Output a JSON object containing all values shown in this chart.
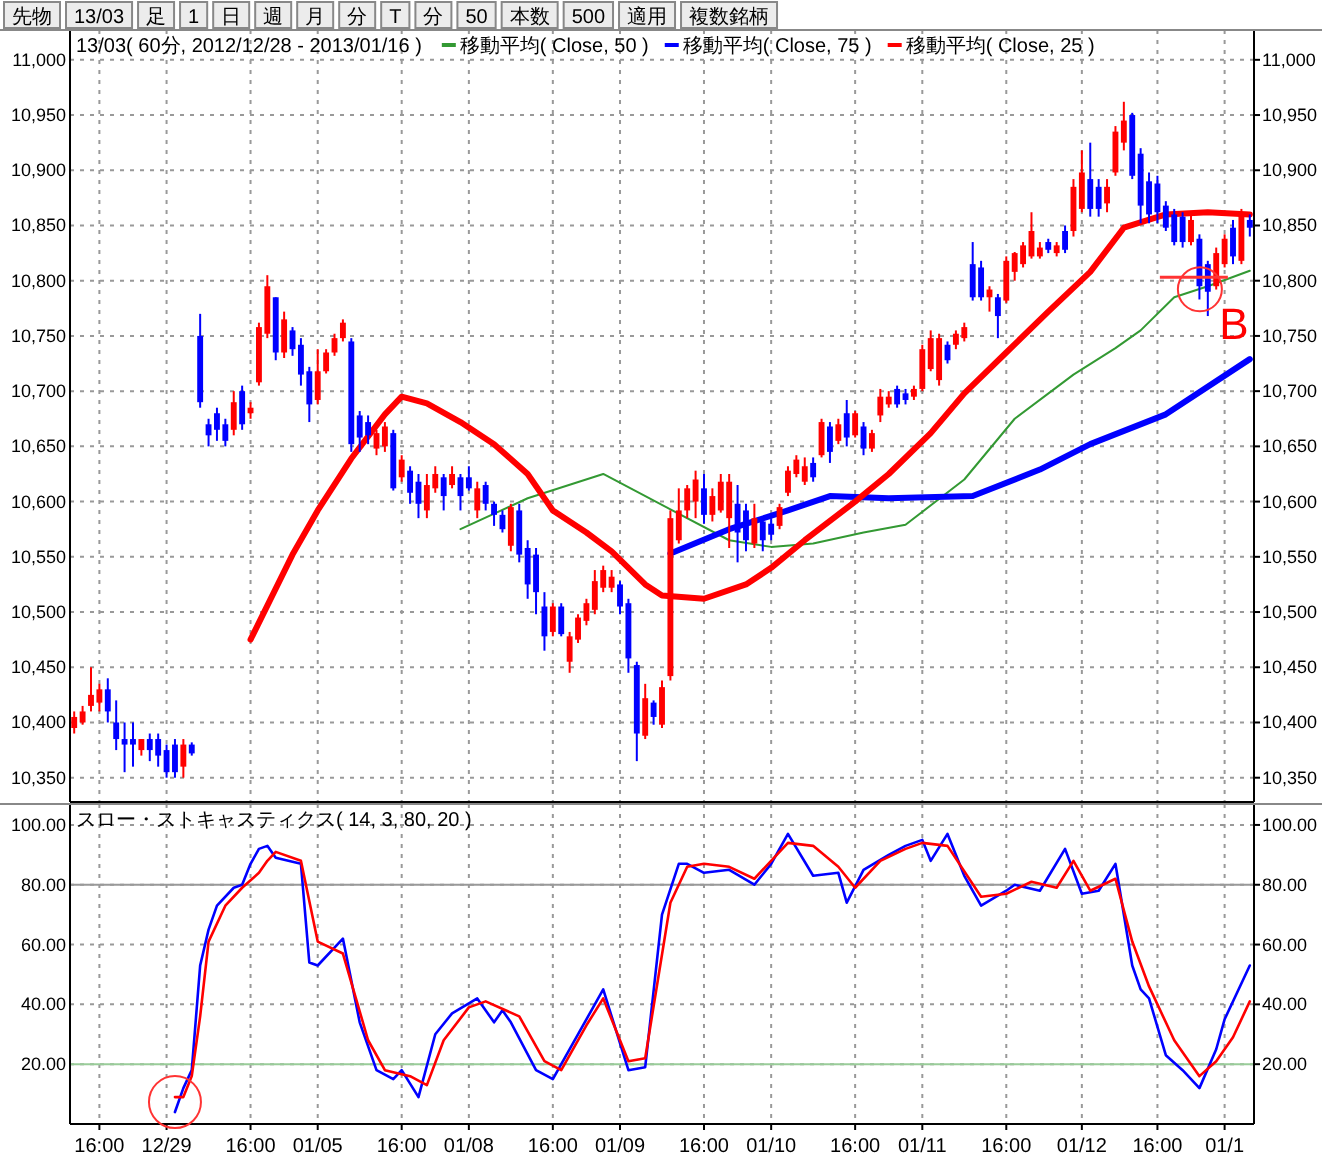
{
  "chart_data": [
    {
      "type": "candlestick",
      "title": "13/03( 60分, 2012/12/28 - 2013/01/16 )",
      "categories": [
        null,
        null,
        null,
        null,
        null,
        null,
        null,
        null,
        null,
        null,
        null,
        null,
        null,
        null,
        null,
        null,
        null,
        null,
        null,
        null,
        null,
        null,
        null,
        null,
        null,
        null,
        null,
        null,
        null,
        null,
        null,
        null,
        null,
        null,
        null,
        null,
        null,
        null,
        null,
        null,
        null,
        null,
        null,
        null,
        null,
        null,
        null,
        null,
        null,
        null,
        null,
        null,
        null,
        null,
        null,
        null,
        null,
        null,
        null,
        null,
        null,
        null,
        null,
        null,
        null,
        null,
        null,
        null,
        null,
        null,
        null,
        null,
        null,
        null,
        null,
        null,
        null,
        null,
        null,
        null,
        null,
        null,
        null,
        null,
        null,
        null,
        null,
        null,
        null,
        null,
        null,
        null,
        null,
        null,
        null,
        null,
        null,
        null,
        null,
        null,
        null,
        null,
        null,
        null,
        null,
        null,
        null,
        null,
        null,
        null,
        null,
        null,
        null,
        null,
        null,
        null,
        null,
        null,
        null,
        null,
        null,
        null,
        null,
        null,
        null,
        null,
        null,
        null,
        null,
        null,
        null,
        null,
        null,
        null,
        null,
        null,
        null,
        null,
        null,
        null,
        null
      ],
      "ohlc": [
        [
          10395,
          10410,
          10390,
          10405
        ],
        [
          10400,
          10415,
          10398,
          10410
        ],
        [
          10415,
          10450,
          10410,
          10425
        ],
        [
          10418,
          10435,
          10410,
          10430
        ],
        [
          10430,
          10440,
          10400,
          10410
        ],
        [
          10400,
          10420,
          10375,
          10385
        ],
        [
          10385,
          10400,
          10355,
          10380
        ],
        [
          10385,
          10400,
          10360,
          10380
        ],
        [
          10375,
          10385,
          10370,
          10385
        ],
        [
          10385,
          10390,
          10365,
          10375
        ],
        [
          10385,
          10390,
          10360,
          10370
        ],
        [
          10375,
          10380,
          10350,
          10355
        ],
        [
          10380,
          10385,
          10350,
          10355
        ],
        [
          10360,
          10385,
          10350,
          10380
        ],
        [
          10380,
          10382,
          10370,
          10372
        ],
        [
          10750,
          10770,
          10685,
          10690
        ],
        [
          10670,
          10675,
          10650,
          10660
        ],
        [
          10680,
          10685,
          10655,
          10665
        ],
        [
          10670,
          10675,
          10650,
          10655
        ],
        [
          10665,
          10700,
          10660,
          10690
        ],
        [
          10700,
          10705,
          10665,
          10670
        ],
        [
          10680,
          10690,
          10675,
          10685
        ],
        [
          10708,
          10762,
          10705,
          10758
        ],
        [
          10752,
          10805,
          10748,
          10795
        ],
        [
          10785,
          10785,
          10728,
          10735
        ],
        [
          10735,
          10772,
          10730,
          10765
        ],
        [
          10755,
          10758,
          10732,
          10738
        ],
        [
          10742,
          10748,
          10705,
          10715
        ],
        [
          10718,
          10722,
          10672,
          10688
        ],
        [
          10692,
          10738,
          10688,
          10718
        ],
        [
          10718,
          10738,
          10716,
          10735
        ],
        [
          10735,
          10752,
          10732,
          10748
        ],
        [
          10748,
          10765,
          10745,
          10762
        ],
        [
          10745,
          10748,
          10645,
          10652
        ],
        [
          10678,
          10682,
          10645,
          10658
        ],
        [
          10672,
          10678,
          10652,
          10660
        ],
        [
          10648,
          10665,
          10642,
          10662
        ],
        [
          10650,
          10672,
          10645,
          10668
        ],
        [
          10662,
          10665,
          10610,
          10612
        ],
        [
          10622,
          10642,
          10618,
          10638
        ],
        [
          10628,
          10632,
          10598,
          10608
        ],
        [
          10618,
          10625,
          10585,
          10598
        ],
        [
          10592,
          10625,
          10585,
          10615
        ],
        [
          10612,
          10632,
          10608,
          10625
        ],
        [
          10622,
          10625,
          10592,
          10605
        ],
        [
          10615,
          10632,
          10612,
          10625
        ],
        [
          10622,
          10625,
          10592,
          10605
        ],
        [
          10622,
          10632,
          10610,
          10612
        ],
        [
          10592,
          10618,
          10585,
          10612
        ],
        [
          10615,
          10618,
          10592,
          10598
        ],
        [
          10598,
          10600,
          10578,
          10588
        ],
        [
          10588,
          10592,
          10572,
          10575
        ],
        [
          10560,
          10598,
          10555,
          10595
        ],
        [
          10592,
          10598,
          10545,
          10552
        ],
        [
          10558,
          10565,
          10512,
          10525
        ],
        [
          10552,
          10558,
          10498,
          10518
        ],
        [
          10505,
          10518,
          10465,
          10478
        ],
        [
          10482,
          10508,
          10478,
          10505
        ],
        [
          10505,
          10508,
          10478,
          10480
        ],
        [
          10455,
          10482,
          10445,
          10478
        ],
        [
          10475,
          10498,
          10472,
          10495
        ],
        [
          10492,
          10512,
          10488,
          10508
        ],
        [
          10502,
          10538,
          10498,
          10528
        ],
        [
          10522,
          10542,
          10518,
          10538
        ],
        [
          10522,
          10538,
          10518,
          10532
        ],
        [
          10525,
          10528,
          10498,
          10505
        ],
        [
          10508,
          10512,
          10445,
          10458
        ],
        [
          10452,
          10455,
          10365,
          10390
        ],
        [
          10388,
          10435,
          10385,
          10422
        ],
        [
          10418,
          10420,
          10398,
          10405
        ],
        [
          10398,
          10438,
          10395,
          10432
        ],
        [
          10442,
          10592,
          10438,
          10585
        ],
        [
          10565,
          10612,
          10562,
          10592
        ],
        [
          10592,
          10615,
          10585,
          10612
        ],
        [
          10600,
          10628,
          10585,
          10620
        ],
        [
          10612,
          10625,
          10580,
          10588
        ],
        [
          10588,
          10612,
          10582,
          10605
        ],
        [
          10592,
          10625,
          10590,
          10618
        ],
        [
          10585,
          10625,
          10558,
          10618
        ],
        [
          10598,
          10615,
          10545,
          10572
        ],
        [
          10592,
          10598,
          10555,
          10565
        ],
        [
          10562,
          10598,
          10558,
          10585
        ],
        [
          10582,
          10585,
          10555,
          10565
        ],
        [
          10580,
          10585,
          10565,
          10570
        ],
        [
          10578,
          10598,
          10575,
          10595
        ],
        [
          10608,
          10632,
          10605,
          10628
        ],
        [
          10625,
          10642,
          10622,
          10638
        ],
        [
          10618,
          10640,
          10615,
          10632
        ],
        [
          10635,
          10640,
          10618,
          10622
        ],
        [
          10642,
          10675,
          10640,
          10672
        ],
        [
          10668,
          10672,
          10635,
          10645
        ],
        [
          10655,
          10675,
          10652,
          10670
        ],
        [
          10680,
          10692,
          10650,
          10658
        ],
        [
          10660,
          10682,
          10658,
          10680
        ],
        [
          10668,
          10672,
          10642,
          10648
        ],
        [
          10648,
          10665,
          10645,
          10662
        ],
        [
          10678,
          10702,
          10672,
          10695
        ],
        [
          10688,
          10700,
          10685,
          10695
        ],
        [
          10702,
          10705,
          10685,
          10688
        ],
        [
          10698,
          10702,
          10688,
          10692
        ],
        [
          10695,
          10705,
          10692,
          10702
        ],
        [
          10702,
          10742,
          10700,
          10738
        ],
        [
          10720,
          10755,
          10718,
          10748
        ],
        [
          10710,
          10752,
          10705,
          10748
        ],
        [
          10742,
          10745,
          10725,
          10728
        ],
        [
          10742,
          10755,
          10738,
          10752
        ],
        [
          10748,
          10762,
          10745,
          10758
        ],
        [
          10815,
          10835,
          10782,
          10785
        ],
        [
          10812,
          10818,
          10782,
          10785
        ],
        [
          10785,
          10795,
          10772,
          10792
        ],
        [
          10785,
          10788,
          10748,
          10768
        ],
        [
          10782,
          10822,
          10780,
          10818
        ],
        [
          10808,
          10826,
          10800,
          10825
        ],
        [
          10815,
          10835,
          10812,
          10832
        ],
        [
          10822,
          10862,
          10820,
          10845
        ],
        [
          10822,
          10835,
          10820,
          10830
        ],
        [
          10835,
          10838,
          10825,
          10828
        ],
        [
          10825,
          10835,
          10822,
          10832
        ],
        [
          10845,
          10850,
          10825,
          10828
        ],
        [
          10845,
          10892,
          10840,
          10885
        ],
        [
          10865,
          10918,
          10862,
          10898
        ],
        [
          10892,
          10925,
          10858,
          10865
        ],
        [
          10885,
          10892,
          10858,
          10865
        ],
        [
          10870,
          10892,
          10862,
          10885
        ],
        [
          10898,
          10940,
          10895,
          10935
        ],
        [
          10925,
          10962,
          10918,
          10945
        ],
        [
          10950,
          10952,
          10892,
          10895
        ],
        [
          10915,
          10920,
          10852,
          10868
        ],
        [
          10890,
          10898,
          10852,
          10860
        ],
        [
          10888,
          10895,
          10852,
          10862
        ],
        [
          10868,
          10872,
          10845,
          10848
        ],
        [
          10860,
          10865,
          10832,
          10835
        ],
        [
          10858,
          10862,
          10830,
          10835
        ],
        [
          10835,
          10860,
          10832,
          10855
        ],
        [
          10838,
          10842,
          10783,
          10795
        ],
        [
          10815,
          10818,
          10768,
          10790
        ],
        [
          10795,
          10830,
          10792,
          10825
        ],
        [
          10815,
          10842,
          10812,
          10838
        ],
        [
          10848,
          10855,
          10815,
          10822
        ],
        [
          10818,
          10865,
          10815,
          10862
        ],
        [
          10855,
          10860,
          10840,
          10848
        ]
      ],
      "colors": [
        "#ff0000",
        "#ff0000",
        "#ff0000",
        "#ff0000",
        "#0000ff",
        "#0000ff",
        "#0000ff",
        "#0000ff",
        "#ff0000",
        "#0000ff",
        "#0000ff",
        "#0000ff",
        "#0000ff",
        "#ff0000",
        "#0000ff",
        "#0000ff",
        "#0000ff",
        "#0000ff",
        "#0000ff",
        "#ff0000",
        "#0000ff",
        "#ff0000",
        "#ff0000",
        "#ff0000",
        "#0000ff",
        "#ff0000",
        "#0000ff",
        "#0000ff",
        "#0000ff",
        "#ff0000",
        "#ff0000",
        "#ff0000",
        "#ff0000",
        "#0000ff",
        "#0000ff",
        "#0000ff",
        "#ff0000",
        "#ff0000",
        "#0000ff",
        "#ff0000",
        "#0000ff",
        "#0000ff",
        "#ff0000",
        "#ff0000",
        "#0000ff",
        "#ff0000",
        "#0000ff",
        "#0000ff",
        "#ff0000",
        "#0000ff",
        "#0000ff",
        "#0000ff",
        "#ff0000",
        "#0000ff",
        "#0000ff",
        "#0000ff",
        "#0000ff",
        "#ff0000",
        "#0000ff",
        "#ff0000",
        "#ff0000",
        "#ff0000",
        "#ff0000",
        "#ff0000",
        "#ff0000",
        "#0000ff",
        "#0000ff",
        "#0000ff",
        "#ff0000",
        "#0000ff",
        "#ff0000",
        "#ff0000",
        "#ff0000",
        "#ff0000",
        "#ff0000",
        "#0000ff",
        "#ff0000",
        "#ff0000",
        "#ff0000",
        "#0000ff",
        "#0000ff",
        "#ff0000",
        "#0000ff",
        "#0000ff",
        "#ff0000",
        "#ff0000",
        "#ff0000",
        "#ff0000",
        "#0000ff",
        "#ff0000",
        "#0000ff",
        "#ff0000",
        "#0000ff",
        "#ff0000",
        "#0000ff",
        "#ff0000",
        "#ff0000",
        "#ff0000",
        "#0000ff",
        "#0000ff",
        "#ff0000",
        "#ff0000",
        "#ff0000",
        "#ff0000",
        "#0000ff",
        "#ff0000",
        "#ff0000",
        "#0000ff",
        "#0000ff",
        "#ff0000",
        "#0000ff",
        "#ff0000",
        "#ff0000",
        "#ff0000",
        "#ff0000",
        "#ff0000",
        "#0000ff",
        "#ff0000",
        "#0000ff",
        "#ff0000",
        "#ff0000",
        "#0000ff",
        "#0000ff",
        "#ff0000",
        "#ff0000",
        "#ff0000",
        "#0000ff",
        "#0000ff",
        "#0000ff",
        "#0000ff",
        "#0000ff",
        "#0000ff",
        "#0000ff",
        "#ff0000",
        "#0000ff",
        "#0000ff",
        "#ff0000",
        "#ff0000",
        "#0000ff",
        "#ff0000",
        "#0000ff"
      ],
      "series": [
        {
          "type": "line",
          "name": "移動平均( Close, 50 )",
          "color": "#339933",
          "values": [
            null,
            null,
            null,
            null,
            null,
            null,
            null,
            null,
            null,
            null,
            null,
            null,
            null,
            null,
            null,
            null,
            null,
            null,
            null,
            null,
            null,
            null,
            null,
            null,
            null,
            null,
            null,
            null,
            null,
            null,
            null,
            null,
            null,
            null,
            null,
            null,
            null,
            null,
            null,
            null,
            null,
            null,
            null,
            null,
            null,
            null,
            10575,
            null,
            null,
            null,
            null,
            null,
            null,
            null,
            10603,
            null,
            null,
            null,
            null,
            null,
            null,
            null,
            null,
            10625,
            null,
            null,
            null,
            null,
            null,
            null,
            null,
            10593,
            null,
            null,
            null,
            null,
            null,
            null,
            10565,
            null,
            null,
            null,
            null,
            10559,
            null,
            null,
            null,
            null,
            10562,
            null,
            null,
            null,
            null,
            null,
            10572,
            null,
            null,
            null,
            null,
            10579,
            null,
            null,
            null,
            null,
            null,
            null,
            10620,
            null,
            null,
            null,
            null,
            null,
            10675,
            null,
            null,
            null,
            null,
            null,
            null,
            10715,
            null,
            null,
            null,
            null,
            10739,
            null,
            null,
            10755,
            null,
            null,
            null,
            10785,
            null,
            null,
            null,
            10795,
            null,
            null,
            null,
            null,
            10809
          ]
        },
        {
          "type": "line",
          "name": "移動平均( Close, 75 )",
          "color": "#0000ff",
          "values": [
            null,
            null,
            null,
            null,
            null,
            null,
            null,
            null,
            null,
            null,
            null,
            null,
            null,
            null,
            null,
            null,
            null,
            null,
            null,
            null,
            null,
            null,
            null,
            null,
            null,
            null,
            null,
            null,
            null,
            null,
            null,
            null,
            null,
            null,
            null,
            null,
            null,
            null,
            null,
            null,
            null,
            null,
            null,
            null,
            null,
            null,
            null,
            null,
            null,
            null,
            null,
            null,
            null,
            null,
            null,
            null,
            null,
            null,
            null,
            null,
            null,
            null,
            null,
            null,
            null,
            null,
            null,
            null,
            null,
            null,
            null,
            10553,
            null,
            null,
            null,
            null,
            null,
            null,
            10575,
            null,
            null,
            null,
            null,
            null,
            null,
            10592,
            null,
            null,
            null,
            null,
            10605,
            null,
            null,
            null,
            null,
            null,
            null,
            10603,
            null,
            null,
            null,
            null,
            null,
            null,
            null,
            null,
            null,
            10605,
            null,
            null,
            null,
            null,
            null,
            null,
            null,
            10629,
            null,
            null,
            null,
            null,
            null,
            10652,
            null,
            null,
            null,
            null,
            null,
            null,
            null,
            null,
            10679,
            null,
            null,
            null,
            null,
            null,
            null,
            null,
            null,
            null,
            10729
          ]
        },
        {
          "type": "line",
          "name": "移動平均( Close, 25 )",
          "color": "#ff0000",
          "values": [
            null,
            null,
            null,
            null,
            null,
            null,
            null,
            null,
            null,
            null,
            null,
            null,
            null,
            null,
            null,
            null,
            null,
            null,
            null,
            null,
            null,
            10475,
            null,
            null,
            null,
            null,
            10552,
            null,
            null,
            10592,
            null,
            null,
            null,
            10639,
            null,
            null,
            null,
            10679,
            null,
            10695,
            null,
            null,
            10689,
            null,
            null,
            null,
            10672,
            null,
            null,
            null,
            10652,
            null,
            null,
            null,
            10625,
            null,
            null,
            10592,
            null,
            null,
            null,
            10572,
            null,
            null,
            10555,
            null,
            null,
            null,
            10525,
            null,
            10515,
            null,
            null,
            null,
            null,
            10512,
            null,
            null,
            null,
            null,
            10525,
            null,
            null,
            10540,
            null,
            null,
            null,
            10565,
            null,
            null,
            null,
            null,
            null,
            10600,
            null,
            null,
            null,
            10625,
            null,
            null,
            null,
            null,
            10662,
            null,
            null,
            null,
            10698,
            null,
            null,
            null,
            null,
            10735,
            null,
            null,
            null,
            null,
            10772,
            null,
            null,
            null,
            null,
            10808,
            null,
            null,
            null,
            10848,
            null,
            null,
            null,
            null,
            10860,
            null,
            null,
            null,
            null,
            10862,
            null,
            null,
            null,
            null,
            10860
          ]
        }
      ],
      "ylim": [
        10328,
        11027
      ],
      "yticks": [
        {
          "value": 10350,
          "label": "10,350"
        },
        {
          "value": 10400,
          "label": "10,400"
        },
        {
          "value": 10450,
          "label": "10,450"
        },
        {
          "value": 10500,
          "label": "10,500"
        },
        {
          "value": 10550,
          "label": "10,550"
        },
        {
          "value": 10600,
          "label": "10,600"
        },
        {
          "value": 10650,
          "label": "10,650"
        },
        {
          "value": 10700,
          "label": "10,700"
        },
        {
          "value": 10750,
          "label": "10,750"
        },
        {
          "value": 10800,
          "label": "10,800"
        },
        {
          "value": 10850,
          "label": "10,850"
        },
        {
          "value": 10900,
          "label": "10,900"
        },
        {
          "value": 10950,
          "label": "10,950"
        },
        {
          "value": 11000,
          "label": "11,000"
        }
      ],
      "y2lim": [
        10328,
        11027
      ],
      "y2ticks": [
        {
          "value": 10350,
          "label": "10,350"
        },
        {
          "value": 10400,
          "label": "10,400"
        },
        {
          "value": 10450,
          "label": "10,450"
        },
        {
          "value": 10500,
          "label": "10,500"
        },
        {
          "value": 10550,
          "label": "10,550"
        },
        {
          "value": 10600,
          "label": "10,600"
        },
        {
          "value": 10650,
          "label": "10,650"
        },
        {
          "value": 10700,
          "label": "10,700"
        },
        {
          "value": 10750,
          "label": "10,750"
        },
        {
          "value": 10800,
          "label": "10,800"
        },
        {
          "value": 10850,
          "label": "10,850"
        },
        {
          "value": 10900,
          "label": "10,900"
        },
        {
          "value": 10950,
          "label": "10,950"
        },
        {
          "value": 11000,
          "label": "11,000"
        }
      ],
      "tick_labels": "y",
      "grid": true,
      "legend": "top",
      "annotations": [
        "B",
        "先物",
        "13/03",
        "足",
        "1",
        "日",
        "週",
        "月",
        "分",
        "T",
        "分",
        "50",
        "本数",
        "500",
        "適用",
        "複数銘柄"
      ]
    },
    {
      "type": "line",
      "title": "スロー・ストキャスティクス( 14, 3, 80, 20 )",
      "categories": [
        null,
        null,
        null,
        "16:00",
        null,
        null,
        null,
        null,
        null,
        null,
        null,
        "12/29",
        null,
        null,
        null,
        null,
        null,
        null,
        null,
        null,
        null,
        "16:00",
        null,
        null,
        null,
        null,
        null,
        null,
        null,
        "01/05",
        null,
        null,
        null,
        null,
        null,
        null,
        null,
        null,
        null,
        "16:00",
        null,
        null,
        null,
        null,
        null,
        null,
        null,
        "01/08",
        null,
        null,
        null,
        null,
        null,
        null,
        null,
        null,
        null,
        "16:00",
        null,
        null,
        null,
        null,
        null,
        null,
        null,
        "01/09",
        null,
        null,
        null,
        null,
        null,
        null,
        null,
        null,
        null,
        "16:00",
        null,
        null,
        null,
        null,
        null,
        null,
        null,
        "01/10",
        null,
        null,
        null,
        null,
        null,
        null,
        null,
        null,
        null,
        "16:00",
        null,
        null,
        null,
        null,
        null,
        null,
        null,
        "01/11",
        null,
        null,
        null,
        null,
        null,
        null,
        null,
        null,
        null,
        "16:00",
        null,
        null,
        null,
        null,
        null,
        null,
        null,
        null,
        "01/12",
        null,
        null,
        null,
        null,
        null,
        null,
        null,
        null,
        "16:00",
        null,
        null,
        null,
        null,
        null,
        null,
        null,
        "01/1",
        null,
        null,
        null
      ],
      "series": [
        {
          "color": "#0000ff",
          "values": [
            null,
            null,
            null,
            null,
            null,
            null,
            null,
            null,
            null,
            null,
            null,
            null,
            4,
            12,
            18,
            53,
            65,
            73,
            null,
            79,
            80,
            87,
            92,
            93,
            89,
            null,
            null,
            87,
            54,
            53,
            null,
            null,
            62,
            null,
            34,
            null,
            18,
            null,
            15,
            18,
            null,
            9,
            null,
            30,
            null,
            37,
            null,
            null,
            42,
            null,
            34,
            38,
            34,
            null,
            null,
            18,
            null,
            15,
            null,
            null,
            null,
            null,
            null,
            45,
            null,
            null,
            18,
            null,
            19,
            null,
            70,
            null,
            87,
            87,
            null,
            84,
            null,
            null,
            85,
            null,
            null,
            80,
            null,
            87,
            null,
            97,
            null,
            null,
            83,
            null,
            null,
            84,
            74,
            null,
            85,
            null,
            null,
            90,
            null,
            93,
            null,
            95,
            88,
            null,
            97,
            null,
            83,
            null,
            73,
            null,
            null,
            78,
            80,
            null,
            null,
            78,
            null,
            null,
            92,
            null,
            77,
            null,
            78,
            null,
            87,
            null,
            53,
            45,
            42,
            null,
            23,
            null,
            18,
            null,
            12,
            null,
            25,
            35,
            null,
            null,
            53
          ]
        },
        {
          "color": "#ff0000",
          "values": [
            null,
            null,
            null,
            null,
            null,
            null,
            null,
            null,
            null,
            null,
            null,
            null,
            9,
            9,
            16,
            36,
            61,
            null,
            73,
            null,
            79,
            null,
            84,
            88,
            91,
            null,
            null,
            88,
            null,
            61,
            null,
            null,
            57,
            null,
            null,
            28,
            null,
            18,
            null,
            null,
            16,
            null,
            13,
            null,
            28,
            null,
            null,
            39,
            null,
            41,
            null,
            null,
            null,
            36,
            null,
            null,
            21,
            null,
            18,
            null,
            null,
            33,
            null,
            42,
            null,
            null,
            21,
            null,
            22,
            null,
            null,
            74,
            null,
            86,
            null,
            87,
            null,
            null,
            86,
            null,
            null,
            82,
            null,
            null,
            null,
            94,
            null,
            null,
            93,
            null,
            null,
            86,
            null,
            79,
            null,
            null,
            88,
            null,
            null,
            92,
            null,
            94,
            null,
            null,
            93,
            null,
            null,
            null,
            76,
            null,
            null,
            77,
            null,
            null,
            81,
            null,
            null,
            79,
            null,
            88,
            null,
            78,
            null,
            null,
            82,
            null,
            61,
            null,
            46,
            null,
            null,
            28,
            null,
            null,
            16,
            null,
            21,
            null,
            29,
            null,
            41
          ]
        }
      ],
      "ylim": [
        0,
        107
      ],
      "yticks": [
        {
          "value": 20,
          "label": "20.00"
        },
        {
          "value": 40,
          "label": "40.00"
        },
        {
          "value": 60,
          "label": "60.00"
        },
        {
          "value": 80,
          "label": "80.00"
        },
        {
          "value": 100,
          "label": "100.00"
        }
      ],
      "y2lim": [
        0,
        107
      ],
      "y2ticks": [
        {
          "value": 20,
          "label": "20.00"
        },
        {
          "value": 40,
          "label": "40.00"
        },
        {
          "value": 60,
          "label": "60.00"
        },
        {
          "value": 80,
          "label": "80.00"
        },
        {
          "value": 100,
          "label": "100.00"
        }
      ],
      "grid": true,
      "ref_lines": [
        {
          "axis": "y",
          "value": 80,
          "color": "#999999"
        },
        {
          "axis": "y",
          "value": 20,
          "color": "#99cc99"
        }
      ]
    }
  ]
}
